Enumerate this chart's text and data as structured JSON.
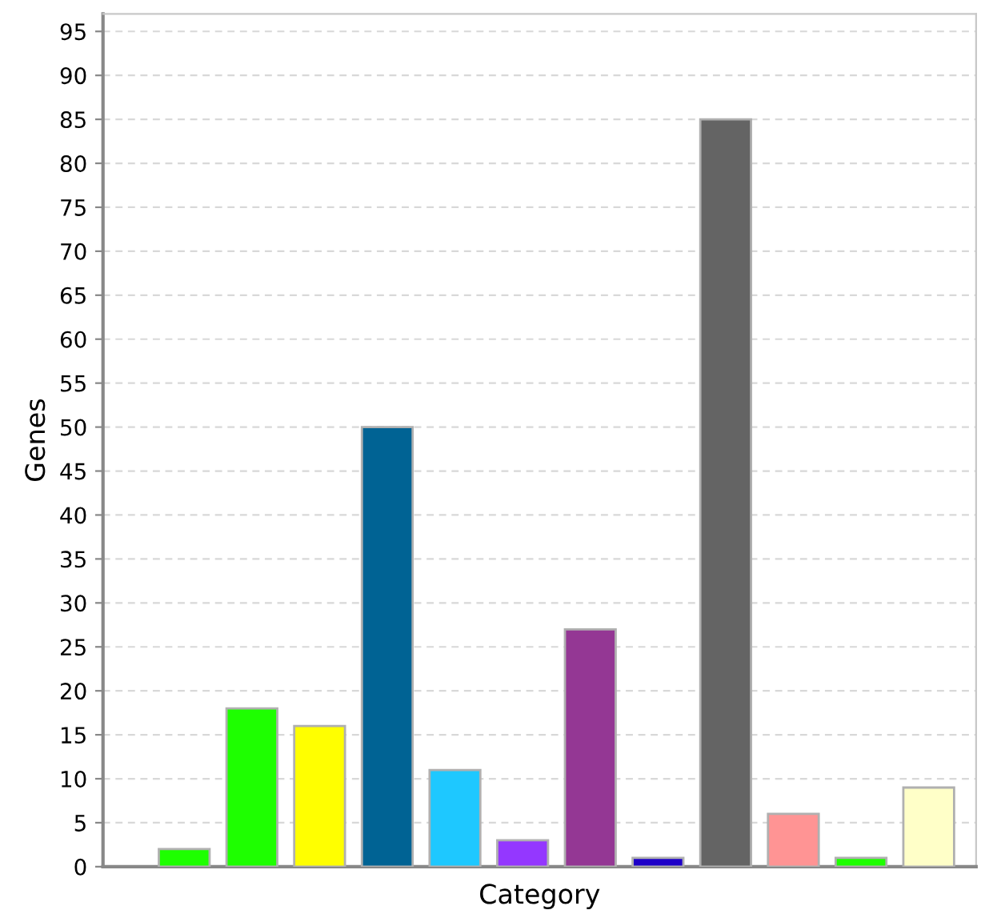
{
  "chart_data": {
    "type": "bar",
    "xlabel": "Category",
    "ylabel": "Genes",
    "categories": [
      null,
      null,
      null,
      null,
      null,
      null,
      null,
      null,
      null,
      null,
      null,
      null
    ],
    "values": [
      2,
      18,
      16,
      50,
      11,
      3,
      27,
      1,
      85,
      6,
      1,
      9
    ],
    "colors": [
      "#1eff00",
      "#1eff00",
      "#ffff00",
      "#006394",
      "#1ec8ff",
      "#9437ff",
      "#943794",
      "#1e00c8",
      "#646464",
      "#ff9494",
      "#1eff00",
      "#ffffc8"
    ],
    "ylim": [
      0,
      97
    ],
    "yticks": [
      0,
      5,
      10,
      15,
      20,
      25,
      30,
      35,
      40,
      45,
      50,
      55,
      60,
      65,
      70,
      75,
      80,
      85,
      90,
      95
    ],
    "grid": "y"
  }
}
